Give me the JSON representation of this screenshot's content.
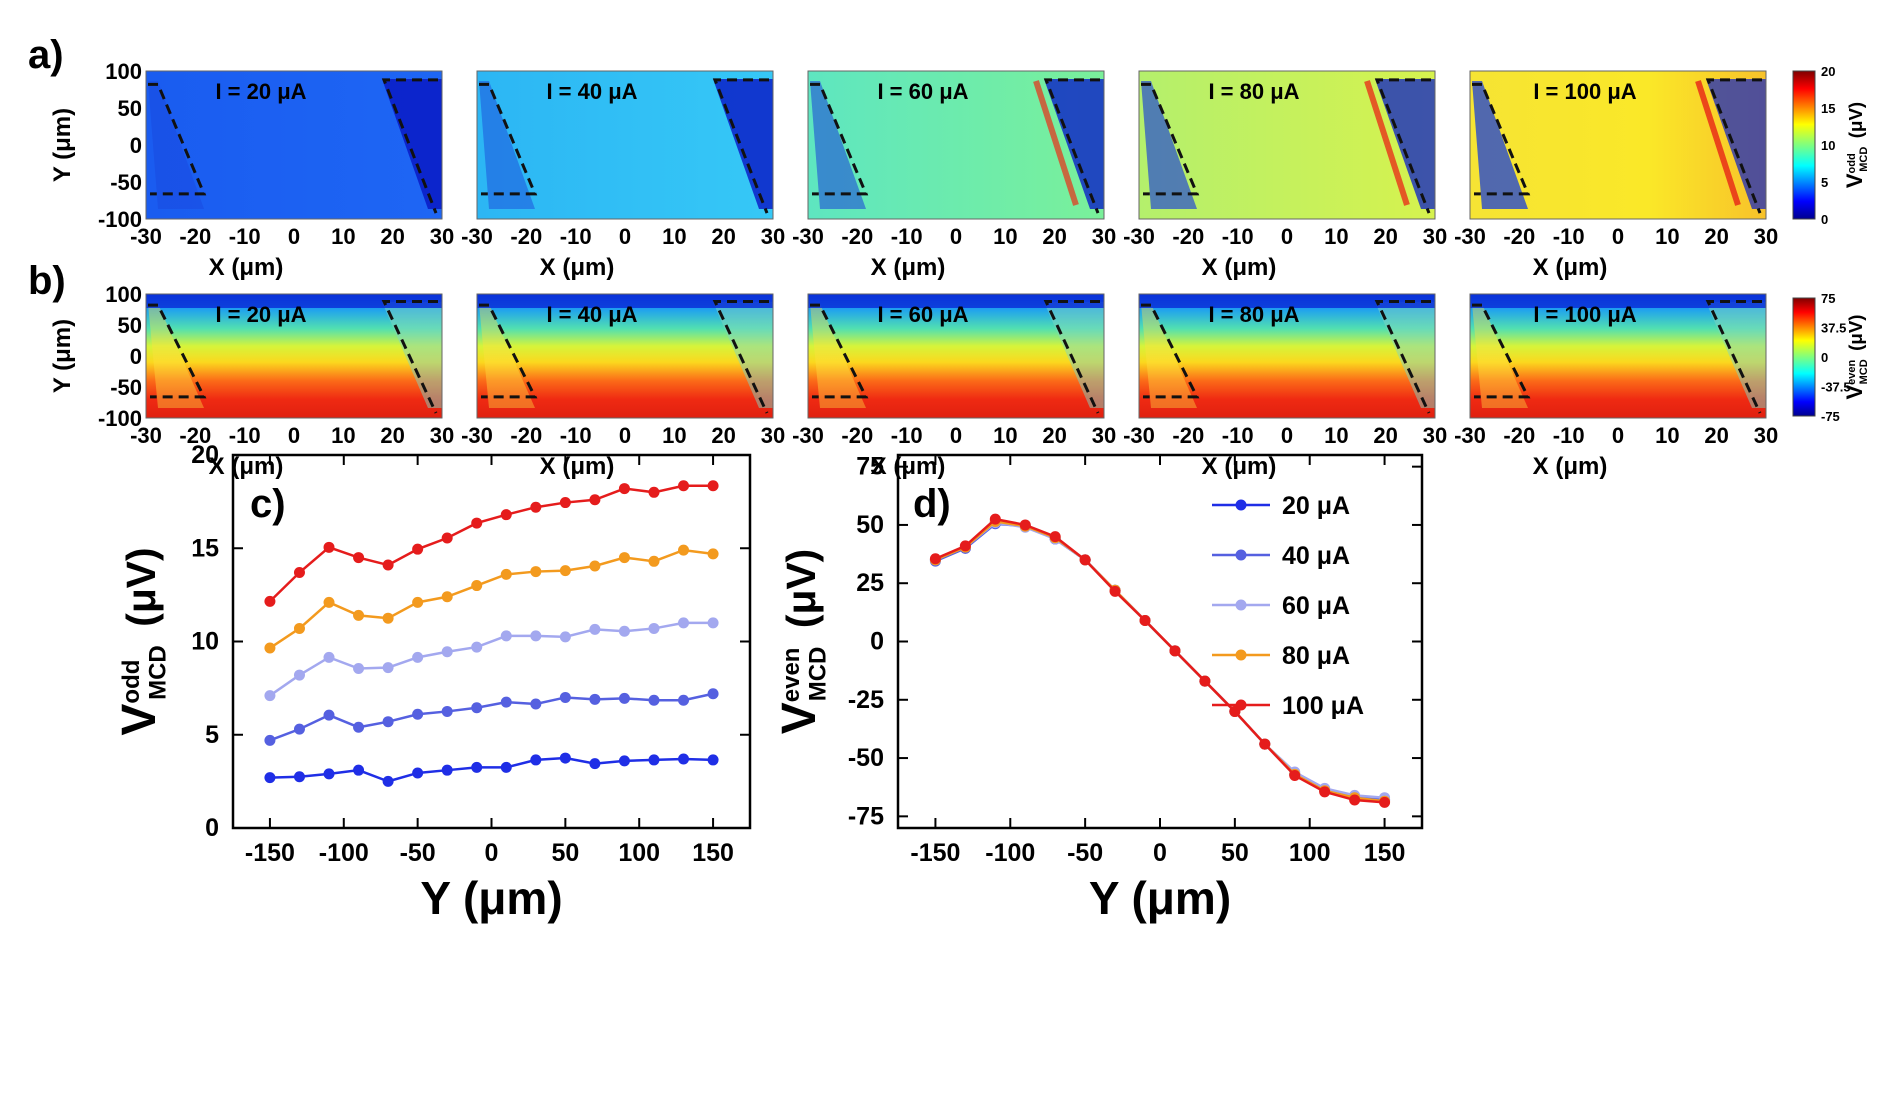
{
  "panel_labels": {
    "a": "a)",
    "b": "b)",
    "c": "c)",
    "d": "d)"
  },
  "maps": {
    "x_label": "X (μm)",
    "y_label": "Y (μm)",
    "x_ticks": [
      "-30",
      "-20",
      "-10",
      "0",
      "10",
      "20",
      "30"
    ],
    "y_ticks": [
      "100",
      "50",
      "0",
      "-50",
      "-100"
    ],
    "currents": [
      "I = 20 μA",
      "I = 40 μA",
      "I = 60 μA",
      "I = 80 μA",
      "I = 100 μA"
    ],
    "odd_colorbar": {
      "label_main": "V",
      "label_sup": "odd",
      "label_sub": "MCD",
      "label_unit": "(μV)",
      "ticks": [
        "20",
        "15",
        "10",
        "5",
        "0"
      ]
    },
    "even_colorbar": {
      "label_main": "V",
      "label_sup": "even",
      "label_sub": "MCD",
      "label_unit": "(μV)",
      "ticks": [
        "75",
        "37.5",
        "0",
        "-37.5",
        "-75"
      ]
    }
  },
  "colors": {
    "s20": "#1f2ee6",
    "s40": "#5560e0",
    "s60": "#a3a8ef",
    "s80": "#f39a1e",
    "s100": "#e51c1c"
  },
  "chart_data": [
    {
      "id": "c",
      "type": "line",
      "xlabel": "Y (μm)",
      "ylabel_main": "V",
      "ylabel_sup": "odd",
      "ylabel_sub": "MCD",
      "ylabel_unit": "(μV)",
      "xlim": [
        -175,
        175
      ],
      "ylim": [
        0,
        20
      ],
      "xticks": [
        -150,
        -100,
        -50,
        0,
        50,
        100,
        150
      ],
      "yticks": [
        0,
        5,
        10,
        15,
        20
      ],
      "x": [
        -150,
        -130,
        -110,
        -90,
        -70,
        -50,
        -30,
        -10,
        10,
        30,
        50,
        70,
        90,
        110,
        130,
        150
      ],
      "series": [
        {
          "name": "20 μA",
          "values": [
            2.7,
            2.75,
            2.9,
            3.1,
            2.5,
            2.95,
            3.1,
            3.25,
            3.25,
            3.65,
            3.75,
            3.45,
            3.6,
            3.65,
            3.7,
            3.65
          ]
        },
        {
          "name": "40 μA",
          "values": [
            4.7,
            5.3,
            6.05,
            5.4,
            5.7,
            6.1,
            6.25,
            6.45,
            6.75,
            6.65,
            7.0,
            6.9,
            6.95,
            6.85,
            6.85,
            7.2
          ]
        },
        {
          "name": "60 μA",
          "values": [
            7.1,
            8.2,
            9.15,
            8.55,
            8.6,
            9.15,
            9.45,
            9.7,
            10.3,
            10.3,
            10.25,
            10.65,
            10.55,
            10.7,
            11.0,
            11.0
          ]
        },
        {
          "name": "80 μA",
          "values": [
            9.65,
            10.7,
            12.1,
            11.4,
            11.25,
            12.1,
            12.4,
            13.0,
            13.6,
            13.75,
            13.8,
            14.05,
            14.5,
            14.3,
            14.9,
            14.7
          ]
        },
        {
          "name": "100 μA",
          "values": [
            12.15,
            13.7,
            15.05,
            14.5,
            14.1,
            14.95,
            15.55,
            16.35,
            16.8,
            17.2,
            17.45,
            17.6,
            18.2,
            18.0,
            18.35,
            18.35
          ]
        }
      ]
    },
    {
      "id": "d",
      "type": "line",
      "xlabel": "Y (μm)",
      "ylabel_main": "V",
      "ylabel_sup": "even",
      "ylabel_sub": "MCD",
      "ylabel_unit": "(μV)",
      "xlim": [
        -175,
        175
      ],
      "ylim": [
        -80,
        80
      ],
      "xticks": [
        -150,
        -100,
        -50,
        0,
        50,
        100,
        150
      ],
      "yticks": [
        75,
        50,
        25,
        0,
        -25,
        -50,
        -75
      ],
      "legend_position": "top-right",
      "x": [
        -150,
        -130,
        -110,
        -90,
        -70,
        -50,
        -30,
        -10,
        10,
        30,
        50,
        70,
        90,
        110,
        130,
        150
      ],
      "series": [
        {
          "name": "20 μA",
          "values": [
            35,
            40,
            51,
            49.5,
            44,
            35,
            22,
            9,
            -4,
            -17,
            -30,
            -44,
            -57,
            -64,
            -67,
            -68
          ]
        },
        {
          "name": "40 μA",
          "values": [
            34.5,
            40,
            50.5,
            49.5,
            44,
            35,
            22,
            9,
            -4,
            -17,
            -30,
            -44,
            -57,
            -63.5,
            -66.5,
            -68
          ]
        },
        {
          "name": "60 μA",
          "values": [
            35,
            40.5,
            51,
            49,
            44,
            35,
            22,
            9,
            -4,
            -17,
            -30,
            -44,
            -56,
            -63,
            -66,
            -67
          ]
        },
        {
          "name": "80 μA",
          "values": [
            35,
            40.5,
            51.5,
            49.5,
            44.5,
            35,
            22,
            9,
            -4,
            -17,
            -30,
            -44,
            -57,
            -64,
            -67,
            -68.5
          ]
        },
        {
          "name": "100 μA",
          "values": [
            35.5,
            41,
            52.5,
            50,
            45,
            35,
            21.5,
            9,
            -4,
            -17,
            -30,
            -44,
            -57.5,
            -64.5,
            -68,
            -69
          ]
        }
      ]
    }
  ]
}
